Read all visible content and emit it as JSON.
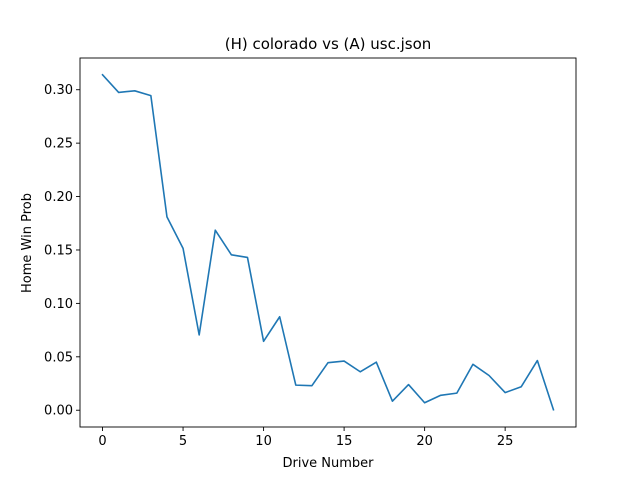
{
  "chart_data": {
    "type": "line",
    "title": "(H) colorado vs (A) usc.json",
    "xlabel": "Drive Number",
    "ylabel": "Home Win Prob",
    "xlim": [
      -1.4,
      29.4
    ],
    "ylim": [
      -0.0157,
      0.3297
    ],
    "x_ticks": [
      0,
      5,
      10,
      15,
      20,
      25
    ],
    "y_ticks": [
      0.0,
      0.05,
      0.1,
      0.15,
      0.2,
      0.25,
      0.3
    ],
    "y_tick_labels": [
      "0.00",
      "0.05",
      "0.10",
      "0.15",
      "0.20",
      "0.25",
      "0.30"
    ],
    "grid": false,
    "line_color": "#1f77b4",
    "series": [
      {
        "x": [
          0,
          1,
          2,
          3,
          4,
          5,
          6,
          7,
          8,
          9,
          10,
          11,
          12,
          13,
          14,
          15,
          16,
          17,
          18,
          19,
          20,
          21,
          22,
          23,
          24,
          25,
          26,
          27,
          28
        ],
        "values": [
          0.314,
          0.2975,
          0.299,
          0.2945,
          0.181,
          0.1515,
          0.0705,
          0.1685,
          0.1455,
          0.143,
          0.0645,
          0.0875,
          0.0235,
          0.023,
          0.0445,
          0.046,
          0.036,
          0.045,
          0.0085,
          0.024,
          0.007,
          0.014,
          0.016,
          0.043,
          0.0325,
          0.0165,
          0.022,
          0.0465,
          0.0005
        ]
      }
    ]
  }
}
